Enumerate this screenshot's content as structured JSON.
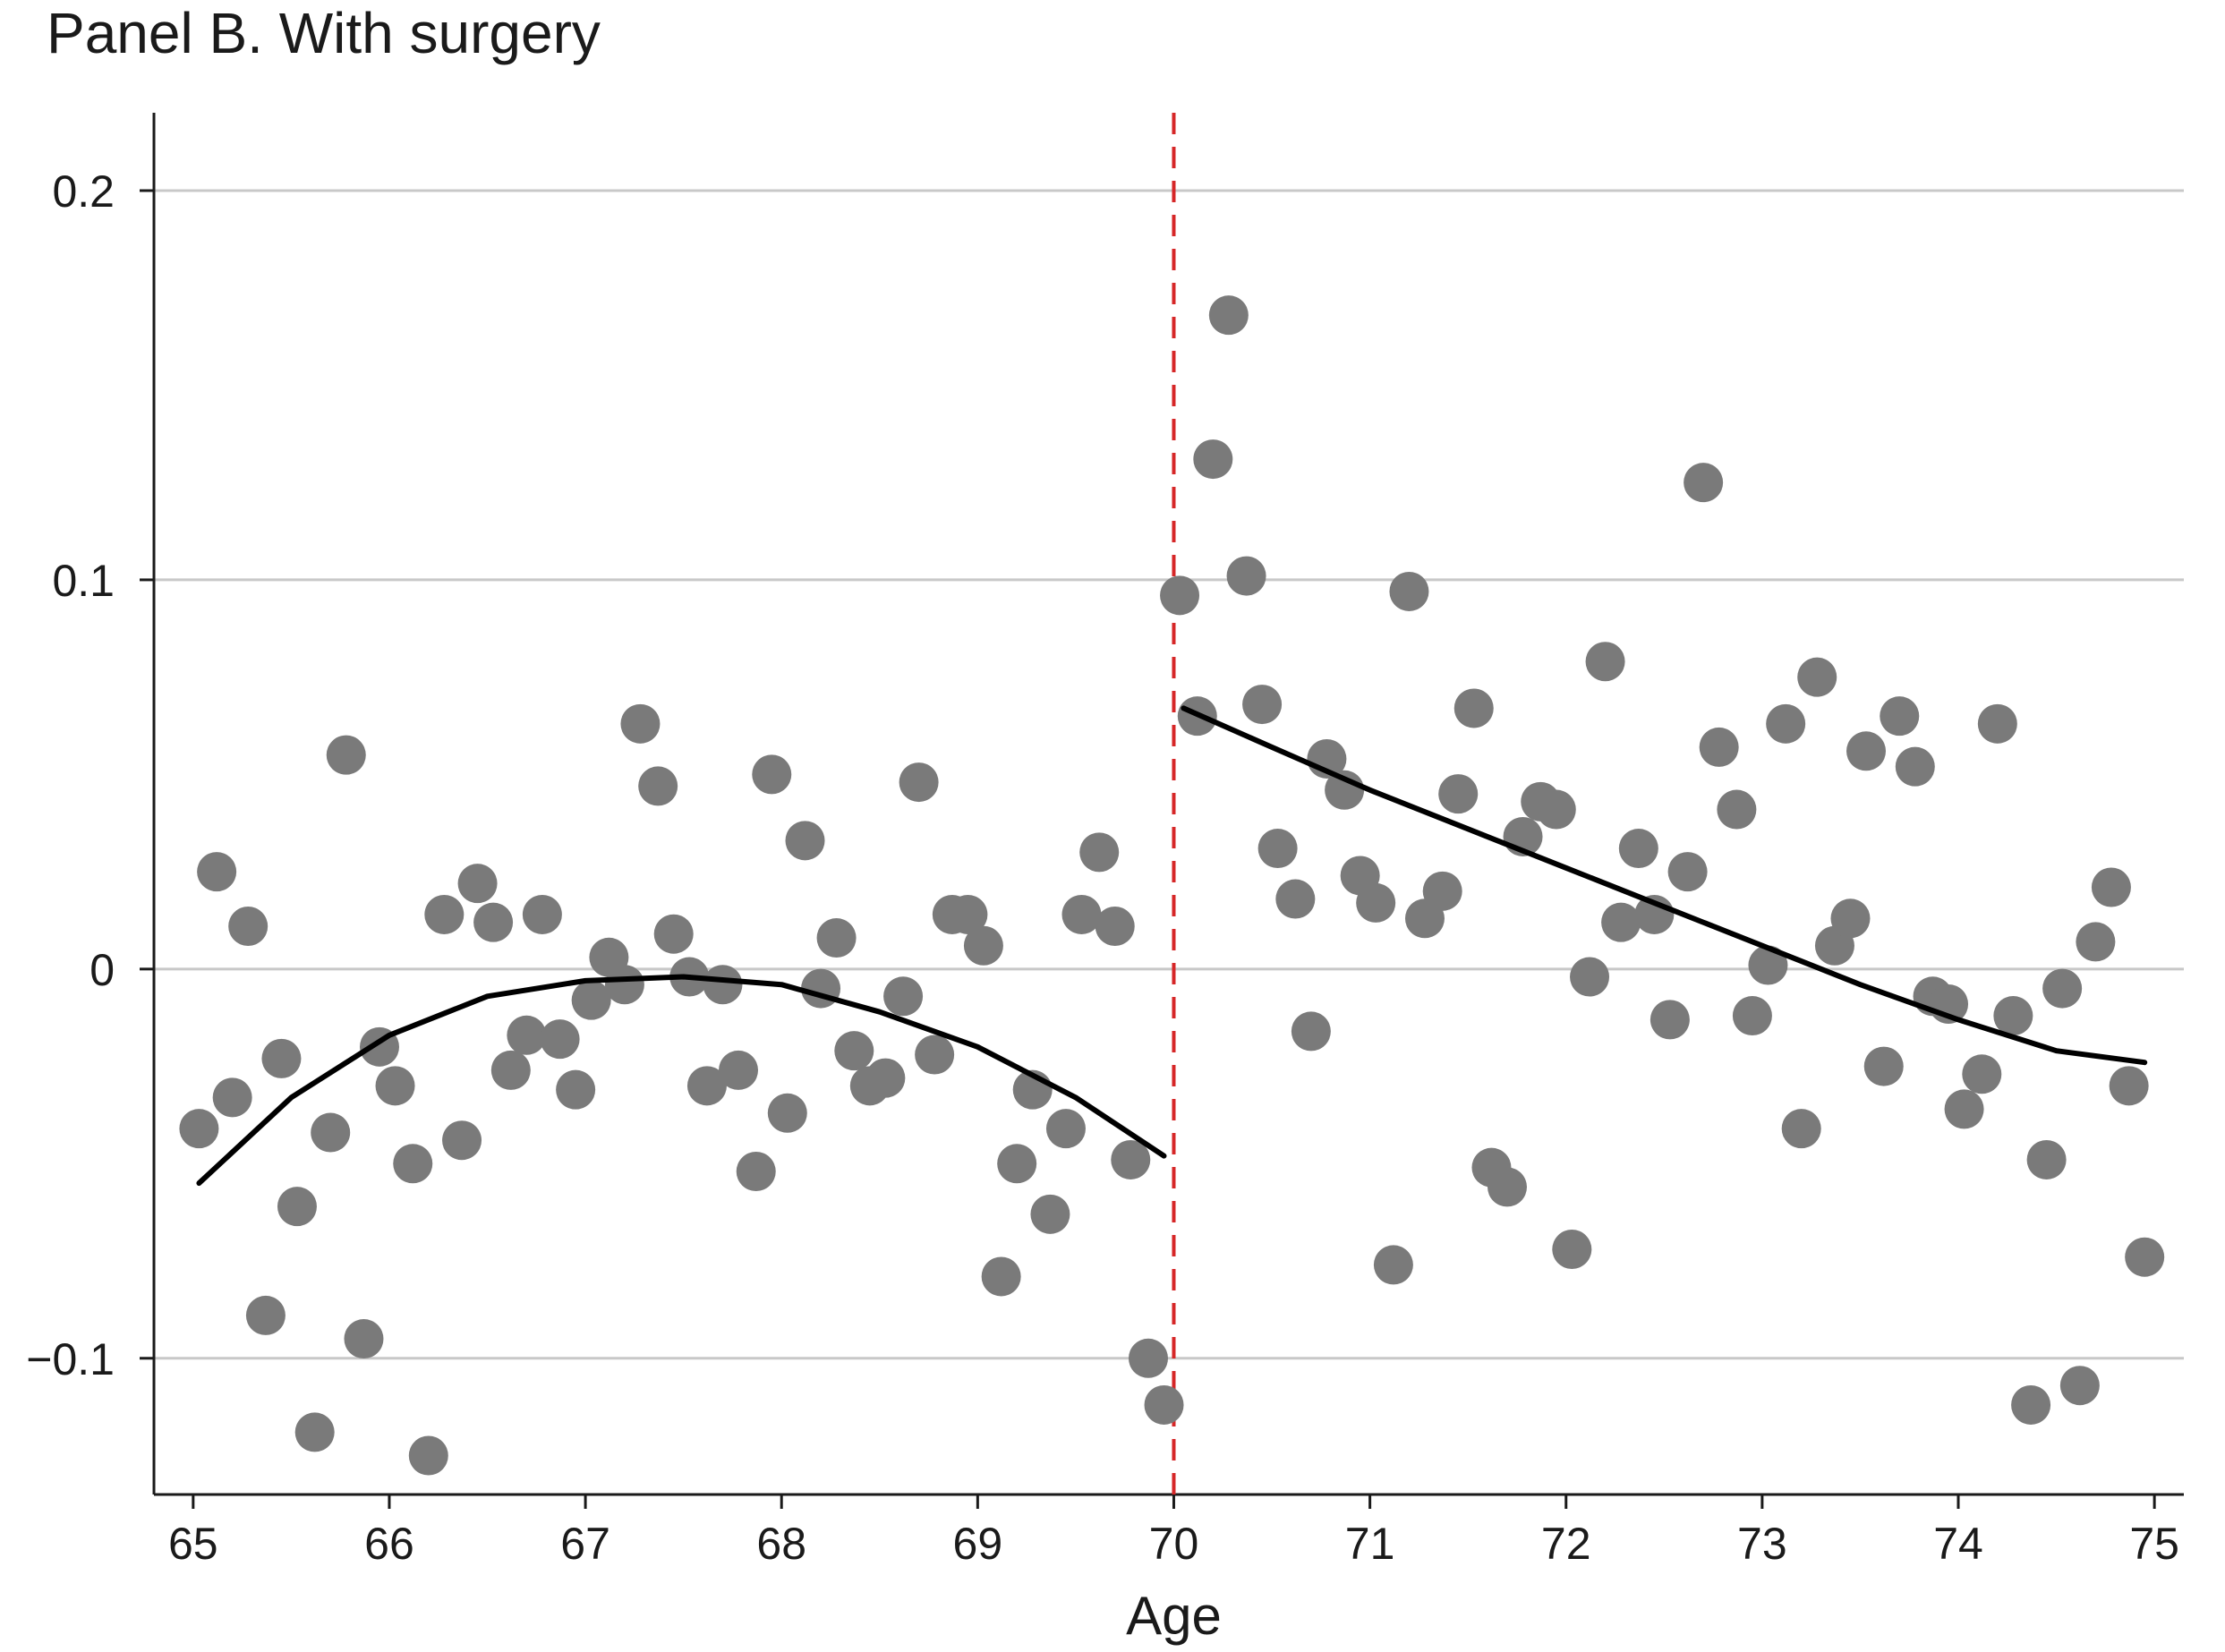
{
  "chart_data": {
    "type": "scatter",
    "title": "Panel B. With surgery",
    "xlabel": "Age",
    "ylabel": "",
    "xlim": [
      64.8,
      75.15
    ],
    "ylim": [
      -0.135,
      0.22
    ],
    "xticks": [
      65,
      66,
      67,
      68,
      69,
      70,
      71,
      72,
      73,
      74,
      75
    ],
    "xtick_labels": [
      "65",
      "66",
      "67",
      "68",
      "69",
      "70",
      "71",
      "72",
      "73",
      "74",
      "75"
    ],
    "yticks": [
      -0.1,
      0,
      0.1,
      0.2
    ],
    "ytick_labels": [
      "−0.1",
      "0",
      "0.1",
      "0.2"
    ],
    "grid": "horizontal",
    "legend": "none",
    "cutoff": 70,
    "colors": {
      "points": "#7a7a7a",
      "fit": "#000000",
      "cutoff": "#d62728",
      "grid": "#c8c8c8",
      "axis": "#1a1a1a"
    },
    "points": [
      [
        65.03,
        -0.041
      ],
      [
        65.12,
        0.025
      ],
      [
        65.2,
        -0.033
      ],
      [
        65.28,
        0.011
      ],
      [
        65.37,
        -0.089
      ],
      [
        65.45,
        -0.023
      ],
      [
        65.53,
        -0.061
      ],
      [
        65.62,
        -0.119
      ],
      [
        65.7,
        -0.042
      ],
      [
        65.78,
        0.055
      ],
      [
        65.87,
        -0.095
      ],
      [
        65.95,
        -0.02
      ],
      [
        66.03,
        -0.03
      ],
      [
        66.12,
        -0.05
      ],
      [
        66.2,
        -0.125
      ],
      [
        66.28,
        0.014
      ],
      [
        66.37,
        -0.044
      ],
      [
        66.45,
        0.022
      ],
      [
        66.53,
        0.012
      ],
      [
        66.62,
        -0.026
      ],
      [
        66.7,
        -0.017
      ],
      [
        66.78,
        0.014
      ],
      [
        66.87,
        -0.018
      ],
      [
        66.95,
        -0.031
      ],
      [
        67.03,
        -0.008
      ],
      [
        67.12,
        0.003
      ],
      [
        67.2,
        -0.004
      ],
      [
        67.28,
        0.063
      ],
      [
        67.37,
        0.047
      ],
      [
        67.45,
        0.009
      ],
      [
        67.53,
        -0.002
      ],
      [
        67.62,
        -0.03
      ],
      [
        67.7,
        -0.004
      ],
      [
        67.78,
        -0.026
      ],
      [
        67.87,
        -0.052
      ],
      [
        67.95,
        0.05
      ],
      [
        68.03,
        -0.037
      ],
      [
        68.12,
        0.033
      ],
      [
        68.2,
        -0.005
      ],
      [
        68.28,
        0.008
      ],
      [
        68.37,
        -0.021
      ],
      [
        68.45,
        -0.03
      ],
      [
        68.53,
        -0.028
      ],
      [
        68.62,
        -0.007
      ],
      [
        68.7,
        0.048
      ],
      [
        68.78,
        -0.022
      ],
      [
        68.87,
        0.014
      ],
      [
        68.95,
        0.014
      ],
      [
        69.03,
        0.006
      ],
      [
        69.12,
        -0.079
      ],
      [
        69.2,
        -0.05
      ],
      [
        69.28,
        -0.031
      ],
      [
        69.37,
        -0.063
      ],
      [
        69.45,
        -0.041
      ],
      [
        69.53,
        0.014
      ],
      [
        69.62,
        0.03
      ],
      [
        69.7,
        0.011
      ],
      [
        69.78,
        -0.049
      ],
      [
        69.87,
        -0.1
      ],
      [
        69.95,
        -0.112
      ],
      [
        70.03,
        0.096
      ],
      [
        70.12,
        0.065
      ],
      [
        70.2,
        0.131
      ],
      [
        70.28,
        0.168
      ],
      [
        70.37,
        0.101
      ],
      [
        70.45,
        0.068
      ],
      [
        70.53,
        0.031
      ],
      [
        70.62,
        0.018
      ],
      [
        70.7,
        -0.016
      ],
      [
        70.78,
        0.054
      ],
      [
        70.87,
        0.046
      ],
      [
        70.95,
        0.024
      ],
      [
        71.03,
        0.017
      ],
      [
        71.12,
        -0.076
      ],
      [
        71.2,
        0.097
      ],
      [
        71.28,
        0.013
      ],
      [
        71.37,
        0.02
      ],
      [
        71.45,
        0.045
      ],
      [
        71.53,
        0.067
      ],
      [
        71.62,
        -0.051
      ],
      [
        71.7,
        -0.056
      ],
      [
        71.78,
        0.034
      ],
      [
        71.87,
        0.043
      ],
      [
        71.95,
        0.041
      ],
      [
        72.03,
        -0.072
      ],
      [
        72.12,
        -0.002
      ],
      [
        72.2,
        0.079
      ],
      [
        72.28,
        0.012
      ],
      [
        72.37,
        0.031
      ],
      [
        72.45,
        0.014
      ],
      [
        72.53,
        -0.013
      ],
      [
        72.62,
        0.025
      ],
      [
        72.7,
        0.125
      ],
      [
        72.78,
        0.057
      ],
      [
        72.87,
        0.041
      ],
      [
        72.95,
        -0.012
      ],
      [
        73.03,
        0.001
      ],
      [
        73.12,
        0.063
      ],
      [
        73.2,
        -0.041
      ],
      [
        73.28,
        0.075
      ],
      [
        73.37,
        0.006
      ],
      [
        73.45,
        0.013
      ],
      [
        73.53,
        0.056
      ],
      [
        73.62,
        -0.025
      ],
      [
        73.7,
        0.065
      ],
      [
        73.78,
        0.052
      ],
      [
        73.87,
        -0.007
      ],
      [
        73.95,
        -0.009
      ],
      [
        74.03,
        -0.036
      ],
      [
        74.12,
        -0.027
      ],
      [
        74.2,
        0.063
      ],
      [
        74.28,
        -0.012
      ],
      [
        74.37,
        -0.112
      ],
      [
        74.45,
        -0.049
      ],
      [
        74.53,
        -0.005
      ],
      [
        74.62,
        -0.107
      ],
      [
        74.7,
        0.007
      ],
      [
        74.78,
        0.021
      ],
      [
        74.87,
        -0.03
      ],
      [
        74.95,
        -0.074
      ]
    ],
    "fits": [
      {
        "segment": "left",
        "points": [
          [
            65.03,
            -0.055
          ],
          [
            65.5,
            -0.033
          ],
          [
            66.0,
            -0.017
          ],
          [
            66.5,
            -0.007
          ],
          [
            67.0,
            -0.003
          ],
          [
            67.5,
            -0.002
          ],
          [
            68.0,
            -0.004
          ],
          [
            68.5,
            -0.011
          ],
          [
            69.0,
            -0.02
          ],
          [
            69.5,
            -0.033
          ],
          [
            69.95,
            -0.048
          ]
        ]
      },
      {
        "segment": "right",
        "points": [
          [
            70.05,
            0.067
          ],
          [
            70.5,
            0.057
          ],
          [
            71.0,
            0.046
          ],
          [
            71.5,
            0.036
          ],
          [
            72.0,
            0.026
          ],
          [
            72.5,
            0.016
          ],
          [
            73.0,
            0.006
          ],
          [
            73.5,
            -0.004
          ],
          [
            74.0,
            -0.013
          ],
          [
            74.5,
            -0.021
          ],
          [
            74.95,
            -0.024
          ]
        ]
      }
    ]
  }
}
